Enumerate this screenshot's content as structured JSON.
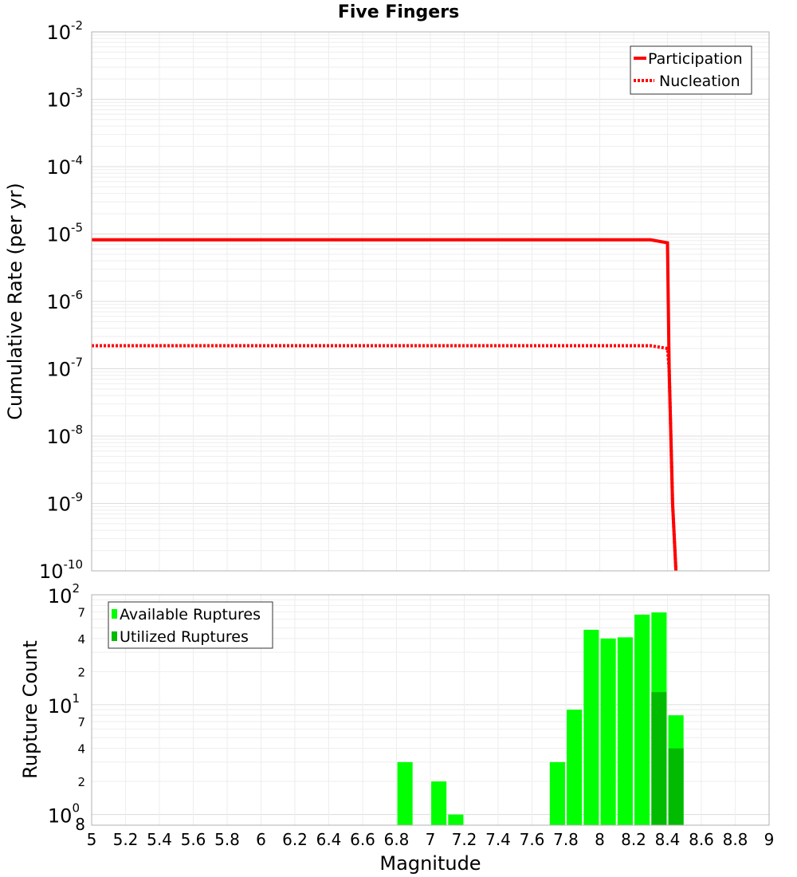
{
  "title": "Five Fingers",
  "colors": {
    "participation": "#ff0000",
    "nucleation": "#ff0000",
    "available": "#00ff00",
    "utilized": "#00bb00",
    "grid": "#e8e8e8",
    "frame": "#b0b0b0"
  },
  "chart_data": [
    {
      "type": "line",
      "title": "Five Fingers",
      "xlabel": "Magnitude",
      "ylabel": "Cumulative Rate (per yr)",
      "yscale": "log",
      "xlim": [
        5,
        9
      ],
      "ylim": [
        1e-10,
        0.01
      ],
      "y_ticks": [
        {
          "base": "10",
          "exp": "-2"
        },
        {
          "base": "10",
          "exp": "-3"
        },
        {
          "base": "10",
          "exp": "-4"
        },
        {
          "base": "10",
          "exp": "-5"
        },
        {
          "base": "10",
          "exp": "-6"
        },
        {
          "base": "10",
          "exp": "-7"
        },
        {
          "base": "10",
          "exp": "-8"
        },
        {
          "base": "10",
          "exp": "-9"
        },
        {
          "base": "10",
          "exp": "-10"
        }
      ],
      "legend": {
        "position": "top-right",
        "entries": [
          "Participation",
          "Nucleation"
        ]
      },
      "series": [
        {
          "name": "Participation",
          "style": "solid",
          "x": [
            5.0,
            8.3,
            8.4,
            8.41,
            8.43,
            8.45
          ],
          "y": [
            8.2e-06,
            8.2e-06,
            7.4e-06,
            1e-07,
            1e-09,
            1e-10
          ]
        },
        {
          "name": "Nucleation",
          "style": "dotted",
          "x": [
            5.0,
            8.3,
            8.4,
            8.41,
            8.43,
            8.45
          ],
          "y": [
            2.2e-07,
            2.2e-07,
            2e-07,
            1e-07,
            1e-09,
            1e-10
          ]
        }
      ]
    },
    {
      "type": "bar",
      "xlabel": "Magnitude",
      "ylabel": "Rupture Count",
      "yscale": "log",
      "xlim": [
        5,
        9
      ],
      "ylim": [
        0.8,
        100
      ],
      "x_ticks": [
        "5",
        "5.2",
        "5.4",
        "5.6",
        "5.8",
        "6",
        "6.2",
        "6.4",
        "6.6",
        "6.8",
        "7",
        "7.2",
        "7.4",
        "7.6",
        "7.8",
        "8",
        "8.2",
        "8.4",
        "8.6",
        "8.8",
        "9"
      ],
      "y_major_ticks": [
        {
          "value": 100,
          "base": "10",
          "exp": "2"
        },
        {
          "value": 10,
          "base": "10",
          "exp": "1"
        },
        {
          "value": 1,
          "base": "10",
          "exp": "0"
        }
      ],
      "y_minor_ticks": [
        {
          "value": 70,
          "label": "7"
        },
        {
          "value": 40,
          "label": "4"
        },
        {
          "value": 20,
          "label": "2"
        },
        {
          "value": 7,
          "label": "7"
        },
        {
          "value": 4,
          "label": "4"
        },
        {
          "value": 2,
          "label": "2"
        },
        {
          "value": 0.8,
          "label": "8"
        }
      ],
      "legend": {
        "position": "top-left",
        "entries": [
          "Available Ruptures",
          "Utilized Ruptures"
        ]
      },
      "bar_width": 0.09,
      "series": [
        {
          "name": "Available Ruptures",
          "x": [
            6.85,
            7.05,
            7.15,
            7.75,
            7.85,
            7.95,
            8.05,
            8.15,
            8.25,
            8.35,
            8.45
          ],
          "values": [
            3,
            2,
            1,
            3,
            9,
            48,
            40,
            41,
            66,
            69,
            8
          ]
        },
        {
          "name": "Utilized Ruptures",
          "x": [
            8.35,
            8.45
          ],
          "values": [
            13,
            4
          ]
        }
      ]
    }
  ]
}
